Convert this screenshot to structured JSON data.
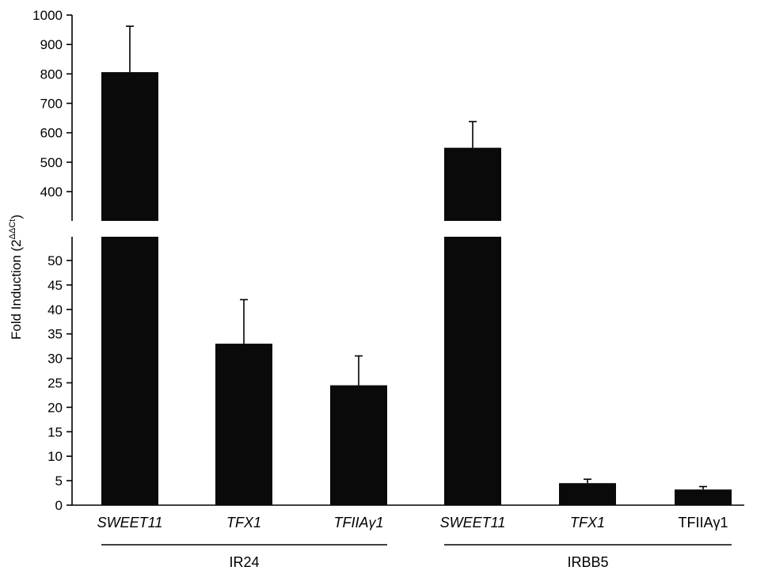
{
  "chart_data": {
    "type": "bar",
    "ylabel": "Fold Induction (2",
    "ylabel_superscript": "ΔΔCt",
    "ylabel_close": ")",
    "axis_break": true,
    "upper_segment": {
      "ylim": [
        300,
        1000
      ],
      "ticks": [
        400,
        500,
        600,
        700,
        800,
        900,
        1000
      ]
    },
    "lower_segment": {
      "ylim": [
        0,
        55
      ],
      "ticks": [
        0,
        5,
        10,
        15,
        20,
        25,
        30,
        35,
        40,
        45,
        50
      ]
    },
    "color": "#0a0a0a",
    "categories": [
      {
        "label": "SWEET11",
        "italic": true,
        "group": "IR24"
      },
      {
        "label": "TFX1",
        "italic": true,
        "group": "IR24"
      },
      {
        "label": "TFIIAγ1",
        "italic": true,
        "group": "IR24"
      },
      {
        "label": "SWEET11",
        "italic": true,
        "group": "IRBB5"
      },
      {
        "label": "TFX1",
        "italic": true,
        "group": "IRBB5"
      },
      {
        "label": "TFIIAγ1",
        "italic": false,
        "group": "IRBB5"
      }
    ],
    "values": [
      806,
      33,
      24.5,
      549,
      4.5,
      3.2
    ],
    "error_upper": [
      962,
      42,
      30.5,
      638,
      5.3,
      3.8
    ],
    "groups": [
      "IR24",
      "IRBB5"
    ]
  }
}
